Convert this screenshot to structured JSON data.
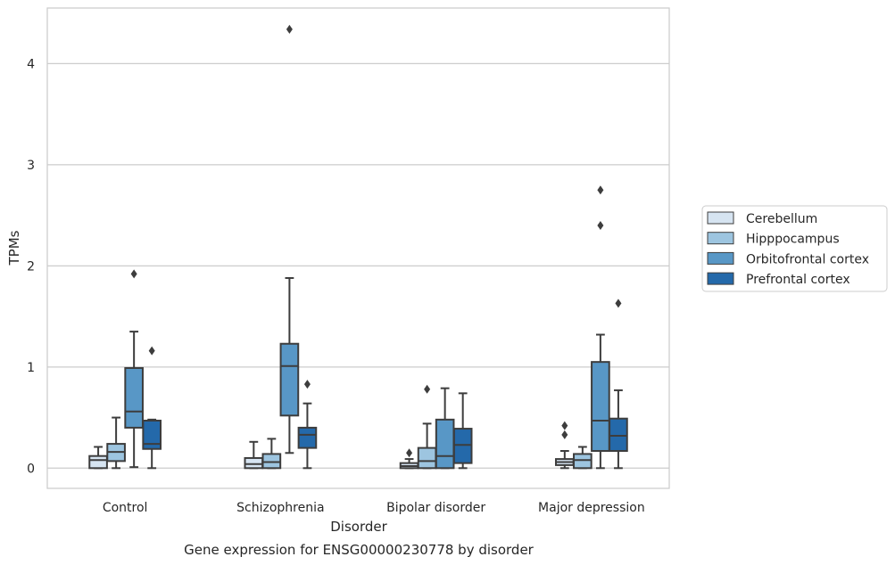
{
  "caption": "Gene expression for ENSG00000230778 by disorder",
  "chart_data": {
    "type": "box",
    "xlabel": "Disorder",
    "ylabel": "TPMs",
    "ylim": [
      -0.2,
      4.55
    ],
    "yticks": [
      0,
      1,
      2,
      3,
      4
    ],
    "grid": "horizontal",
    "legend_position": "right",
    "categories": [
      "Control",
      "Schizophrenia",
      "Bipolar disorder",
      "Major depression"
    ],
    "series": [
      {
        "name": "Cerebellum",
        "color": "#d6e4f1",
        "boxes": [
          {
            "whislo": 0.0,
            "q1": 0.0,
            "med": 0.08,
            "q3": 0.12,
            "whishi": 0.21,
            "fliers": []
          },
          {
            "whislo": 0.0,
            "q1": 0.0,
            "med": 0.04,
            "q3": 0.1,
            "whishi": 0.26,
            "fliers": []
          },
          {
            "whislo": 0.0,
            "q1": 0.0,
            "med": 0.02,
            "q3": 0.05,
            "whishi": 0.09,
            "fliers": [
              0.15
            ]
          },
          {
            "whislo": 0.0,
            "q1": 0.03,
            "med": 0.06,
            "q3": 0.09,
            "whishi": 0.17,
            "fliers": [
              0.33,
              0.42
            ]
          }
        ]
      },
      {
        "name": "Hipppocampus",
        "color": "#9dc5e0",
        "boxes": [
          {
            "whislo": 0.0,
            "q1": 0.07,
            "med": 0.16,
            "q3": 0.24,
            "whishi": 0.5,
            "fliers": []
          },
          {
            "whislo": 0.0,
            "q1": 0.0,
            "med": 0.06,
            "q3": 0.14,
            "whishi": 0.29,
            "fliers": []
          },
          {
            "whislo": 0.0,
            "q1": 0.0,
            "med": 0.07,
            "q3": 0.2,
            "whishi": 0.44,
            "fliers": [
              0.78
            ]
          },
          {
            "whislo": 0.0,
            "q1": 0.0,
            "med": 0.08,
            "q3": 0.14,
            "whishi": 0.21,
            "fliers": []
          }
        ]
      },
      {
        "name": "Orbitofrontal cortex",
        "color": "#5897c6",
        "boxes": [
          {
            "whislo": 0.01,
            "q1": 0.4,
            "med": 0.56,
            "q3": 0.99,
            "whishi": 1.35,
            "fliers": [
              1.92
            ]
          },
          {
            "whislo": 0.15,
            "q1": 0.52,
            "med": 1.01,
            "q3": 1.23,
            "whishi": 1.88,
            "fliers": [
              4.34
            ]
          },
          {
            "whislo": 0.0,
            "q1": 0.0,
            "med": 0.12,
            "q3": 0.48,
            "whishi": 0.79,
            "fliers": []
          },
          {
            "whislo": 0.0,
            "q1": 0.17,
            "med": 0.47,
            "q3": 1.05,
            "whishi": 1.32,
            "fliers": [
              2.4,
              2.75
            ]
          }
        ]
      },
      {
        "name": "Prefrontal cortex",
        "color": "#2469aa",
        "boxes": [
          {
            "whislo": 0.0,
            "q1": 0.19,
            "med": 0.24,
            "q3": 0.47,
            "whishi": 0.48,
            "fliers": [
              1.16
            ]
          },
          {
            "whislo": 0.0,
            "q1": 0.2,
            "med": 0.33,
            "q3": 0.4,
            "whishi": 0.64,
            "fliers": [
              0.83
            ]
          },
          {
            "whislo": 0.0,
            "q1": 0.05,
            "med": 0.23,
            "q3": 0.39,
            "whishi": 0.74,
            "fliers": []
          },
          {
            "whislo": 0.0,
            "q1": 0.17,
            "med": 0.32,
            "q3": 0.49,
            "whishi": 0.77,
            "fliers": [
              1.63
            ]
          }
        ]
      }
    ]
  }
}
